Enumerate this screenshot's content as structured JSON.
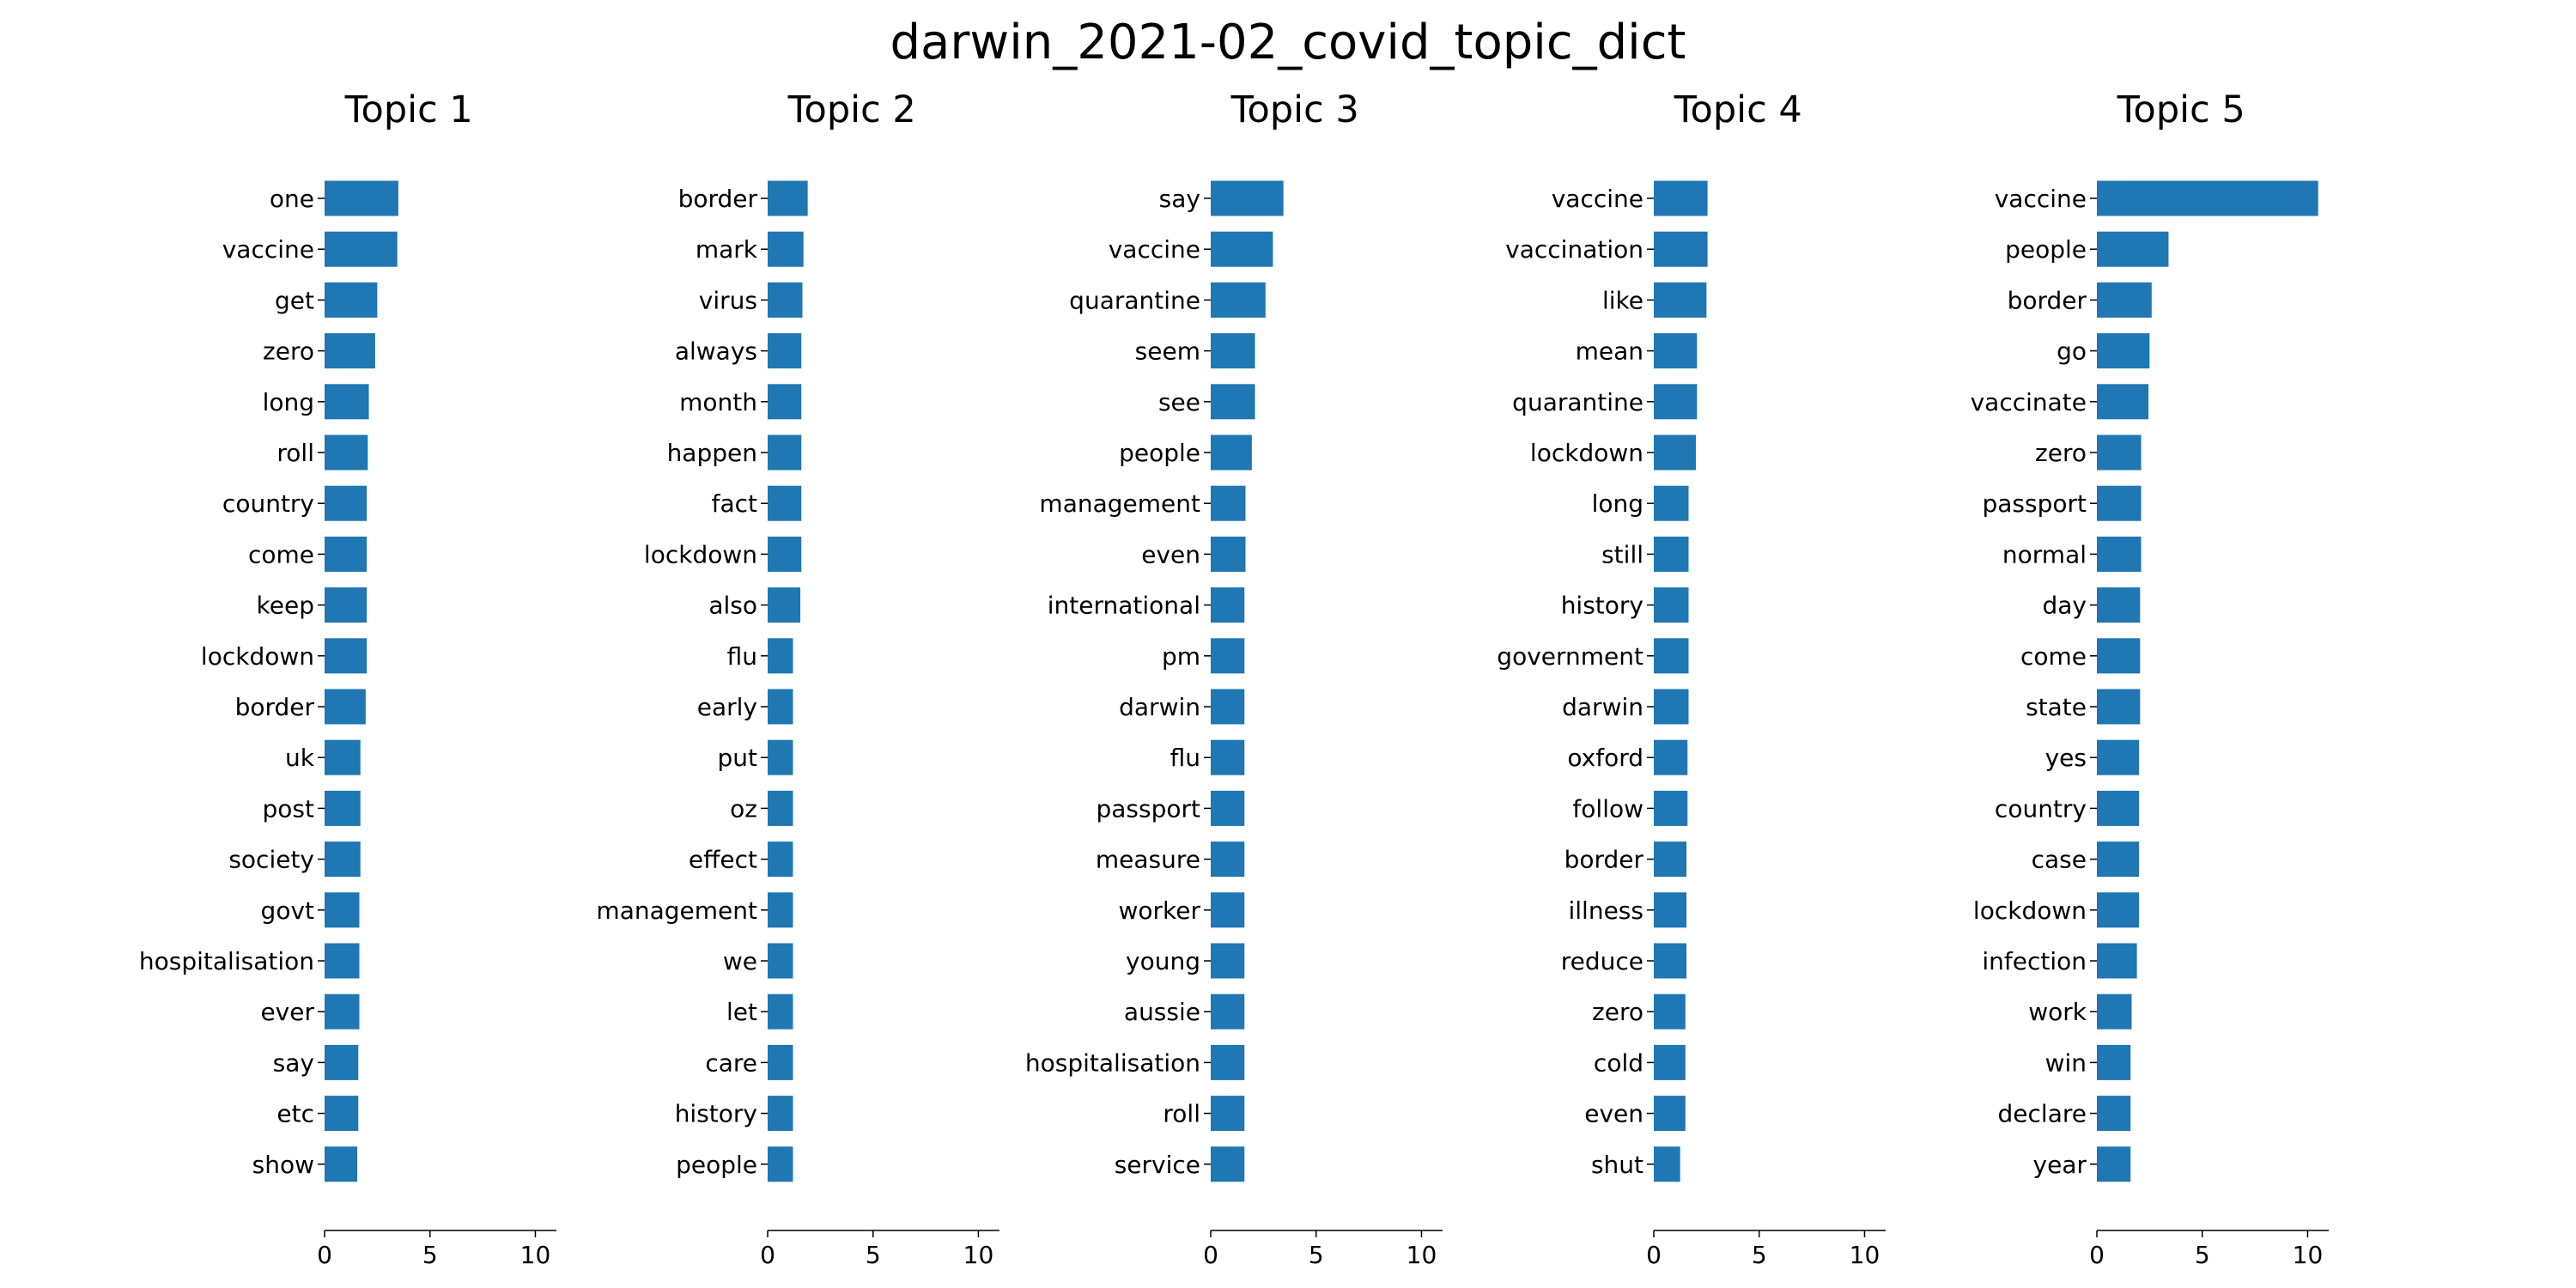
{
  "title": "darwin_2021-02_covid_topic_dict",
  "colors": {
    "bar": "#1f77b4",
    "axis": "#000000",
    "text": "#000000"
  },
  "chart_data": [
    {
      "type": "bar",
      "orientation": "horizontal",
      "title": "Topic 1",
      "xlim": [
        0,
        11
      ],
      "xticks": [
        0,
        5,
        10
      ],
      "categories": [
        "one",
        "vaccine",
        "get",
        "zero",
        "long",
        "roll",
        "country",
        "come",
        "keep",
        "lockdown",
        "border",
        "uk",
        "post",
        "society",
        "govt",
        "hospitalisation",
        "ever",
        "say",
        "etc",
        "show"
      ],
      "values": [
        3.5,
        3.45,
        2.5,
        2.4,
        2.1,
        2.05,
        2.0,
        2.0,
        2.0,
        2.0,
        1.95,
        1.7,
        1.7,
        1.7,
        1.65,
        1.65,
        1.65,
        1.6,
        1.6,
        1.55
      ]
    },
    {
      "type": "bar",
      "orientation": "horizontal",
      "title": "Topic 2",
      "xlim": [
        0,
        11
      ],
      "xticks": [
        0,
        5,
        10
      ],
      "categories": [
        "border",
        "mark",
        "virus",
        "always",
        "month",
        "happen",
        "fact",
        "lockdown",
        "also",
        "flu",
        "early",
        "put",
        "oz",
        "effect",
        "management",
        "we",
        "let",
        "care",
        "history",
        "people"
      ],
      "values": [
        1.9,
        1.7,
        1.65,
        1.6,
        1.6,
        1.6,
        1.6,
        1.6,
        1.55,
        1.2,
        1.2,
        1.2,
        1.2,
        1.2,
        1.2,
        1.2,
        1.2,
        1.2,
        1.2,
        1.2
      ]
    },
    {
      "type": "bar",
      "orientation": "horizontal",
      "title": "Topic 3",
      "xlim": [
        0,
        11
      ],
      "xticks": [
        0,
        5,
        10
      ],
      "categories": [
        "say",
        "vaccine",
        "quarantine",
        "seem",
        "see",
        "people",
        "management",
        "even",
        "international",
        "pm",
        "darwin",
        "flu",
        "passport",
        "measure",
        "worker",
        "young",
        "aussie",
        "hospitalisation",
        "roll",
        "service"
      ],
      "values": [
        3.45,
        2.95,
        2.6,
        2.1,
        2.1,
        1.95,
        1.65,
        1.65,
        1.6,
        1.6,
        1.6,
        1.6,
        1.6,
        1.6,
        1.6,
        1.6,
        1.6,
        1.6,
        1.6,
        1.6
      ]
    },
    {
      "type": "bar",
      "orientation": "horizontal",
      "title": "Topic 4",
      "xlim": [
        0,
        11
      ],
      "xticks": [
        0,
        5,
        10
      ],
      "categories": [
        "vaccine",
        "vaccination",
        "like",
        "mean",
        "quarantine",
        "lockdown",
        "long",
        "still",
        "history",
        "government",
        "darwin",
        "oxford",
        "follow",
        "border",
        "illness",
        "reduce",
        "zero",
        "cold",
        "even",
        "shut"
      ],
      "values": [
        2.55,
        2.55,
        2.5,
        2.05,
        2.05,
        2.0,
        1.65,
        1.65,
        1.65,
        1.65,
        1.65,
        1.6,
        1.6,
        1.55,
        1.55,
        1.55,
        1.5,
        1.5,
        1.5,
        1.25
      ]
    },
    {
      "type": "bar",
      "orientation": "horizontal",
      "title": "Topic 5",
      "xlim": [
        0,
        11
      ],
      "xticks": [
        0,
        5,
        10
      ],
      "categories": [
        "vaccine",
        "people",
        "border",
        "go",
        "vaccinate",
        "zero",
        "passport",
        "normal",
        "day",
        "come",
        "state",
        "yes",
        "country",
        "case",
        "lockdown",
        "infection",
        "work",
        "win",
        "declare",
        "year"
      ],
      "values": [
        10.5,
        3.4,
        2.6,
        2.5,
        2.45,
        2.1,
        2.1,
        2.1,
        2.05,
        2.05,
        2.05,
        2.0,
        2.0,
        2.0,
        2.0,
        1.9,
        1.65,
        1.6,
        1.6,
        1.6
      ]
    }
  ]
}
